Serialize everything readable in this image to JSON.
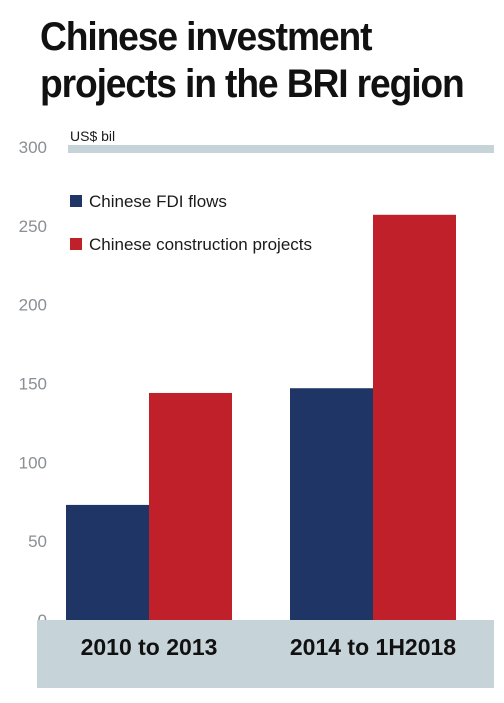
{
  "chart_data": {
    "type": "bar",
    "title": "Chinese investment projects in the BRI region",
    "unit_label": "US$ bil",
    "categories": [
      "2010 to 2013",
      "2014 to 1H2018"
    ],
    "series": [
      {
        "name": "Chinese FDI flows",
        "color": "#1f3566",
        "values": [
          73,
          147
        ]
      },
      {
        "name": "Chinese construction projects",
        "color": "#c0202a",
        "values": [
          144,
          257
        ]
      }
    ],
    "ylim": [
      0,
      300
    ],
    "yticks": [
      0,
      50,
      100,
      150,
      200,
      250,
      300
    ],
    "grid": false,
    "legend": "top-left",
    "colors": {
      "axis_band": "#c6d3d8",
      "tick_text": "#8a8f93"
    }
  }
}
